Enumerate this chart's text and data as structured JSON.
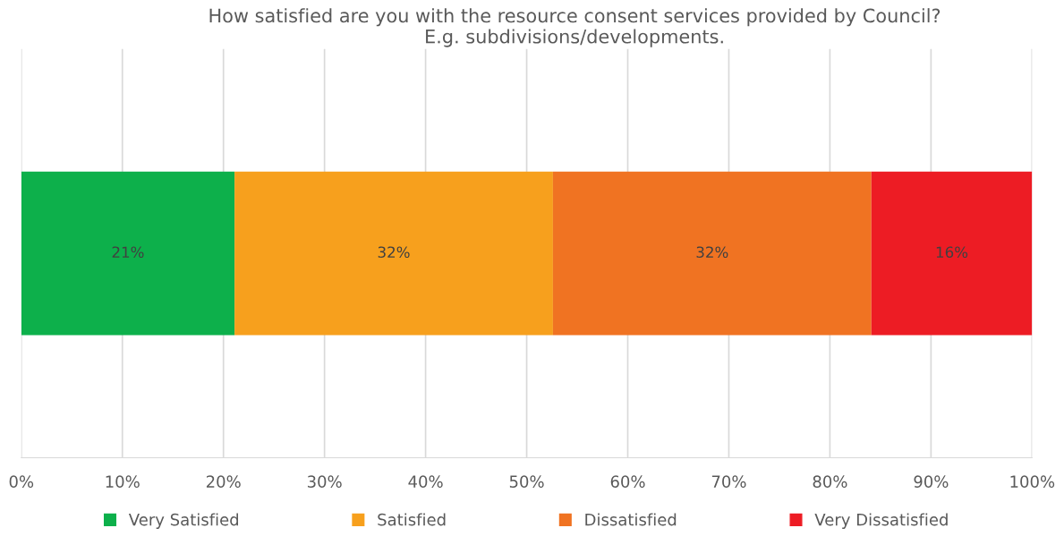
{
  "chart_data": {
    "type": "bar",
    "orientation": "horizontal",
    "stacked": true,
    "title": "How satisfied are you with the resource consent services provided by Council?\nE.g. subdivisions/developments.",
    "categories": [
      null
    ],
    "series": [
      {
        "name": "Very Satisfied",
        "color": "#0db04b",
        "values": [
          21.1
        ],
        "value_labels": [
          "21%"
        ]
      },
      {
        "name": "Satisfied",
        "color": "#f7a01d",
        "values": [
          31.5
        ],
        "value_labels": [
          "32%"
        ]
      },
      {
        "name": "Dissatisfied",
        "color": "#f07322",
        "values": [
          31.5
        ],
        "value_labels": [
          "32%"
        ]
      },
      {
        "name": "Very Dissatisfied",
        "color": "#ed1c24",
        "values": [
          15.9
        ],
        "value_labels": [
          "16%"
        ]
      }
    ],
    "xlim": [
      0,
      100
    ],
    "xticks": [
      {
        "value": 0,
        "label": "0%"
      },
      {
        "value": 10,
        "label": "10%"
      },
      {
        "value": 20,
        "label": "20%"
      },
      {
        "value": 30,
        "label": "30%"
      },
      {
        "value": 40,
        "label": "40%"
      },
      {
        "value": 50,
        "label": "50%"
      },
      {
        "value": 60,
        "label": "60%"
      },
      {
        "value": 70,
        "label": "70%"
      },
      {
        "value": 80,
        "label": "80%"
      },
      {
        "value": 90,
        "label": "90%"
      },
      {
        "value": 100,
        "label": "100%"
      }
    ],
    "grid": "x",
    "legend": "bottom"
  }
}
